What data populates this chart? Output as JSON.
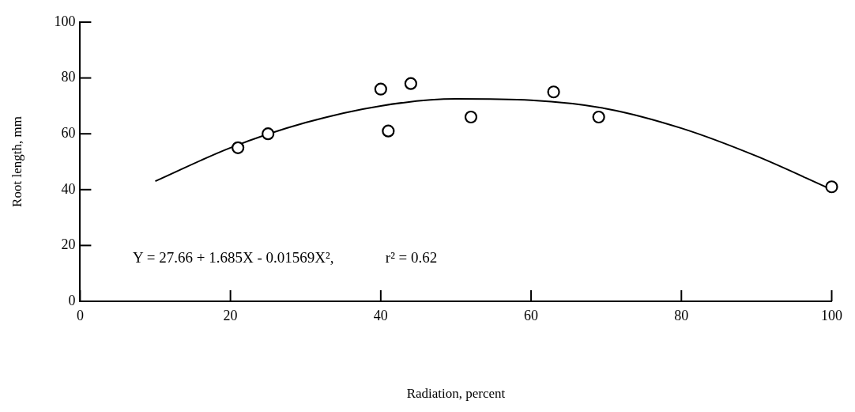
{
  "chart_data": {
    "type": "scatter",
    "xlabel": "Radiation, percent",
    "ylabel": "Root length, mm",
    "xlim": [
      0,
      100
    ],
    "xticks": [
      0,
      20,
      40,
      60,
      80,
      100
    ],
    "ylim": [
      0,
      100
    ],
    "yticks": [
      0,
      20,
      40,
      60,
      80,
      100
    ],
    "grid": false,
    "legend": false,
    "marker": "circle",
    "series": [
      {
        "color": "#000000",
        "x": [
          21,
          25,
          40,
          41,
          44,
          52,
          63,
          69,
          100
        ],
        "values": [
          55,
          60,
          76,
          61,
          78,
          66,
          75,
          66,
          41
        ]
      },
      {
        "type": "line",
        "color": "#000000",
        "marker": "none",
        "line_style": "solid",
        "x": [
          10,
          20,
          30,
          40,
          50,
          60,
          70,
          80,
          90,
          100
        ],
        "values": [
          43,
          55,
          64,
          70,
          72.5,
          72,
          69,
          62,
          52,
          40
        ]
      }
    ],
    "annotations": [
      "Y = 27.66 + 1.685X - 0.01569X², ",
      "r² = 0.62"
    ]
  }
}
